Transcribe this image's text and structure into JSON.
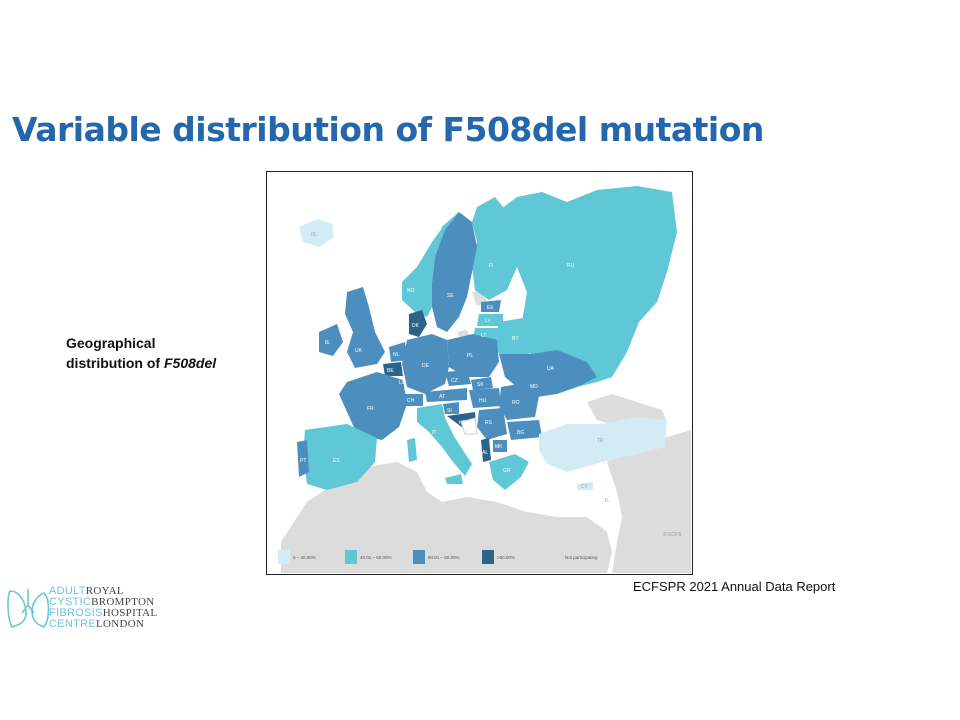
{
  "title": "Variable distribution of F508del mutation",
  "caption": {
    "line1": "Geographical",
    "line2_prefix": "distribution of ",
    "line2_emph": "F508del"
  },
  "source": "ECFSPR 2021 Annual Data Report",
  "legend": [
    {
      "label": "0 – 40.00%",
      "color": "#d3ebf4"
    },
    {
      "label": "40.01 – 60.00%",
      "color": "#5fc7d6"
    },
    {
      "label": "60.01 – 80.00%",
      "color": "#4c8fbe"
    },
    {
      "label": ">80.00%",
      "color": "#2b6488"
    },
    {
      "label": "Not participating",
      "color": "#dcdcdc"
    }
  ],
  "map_credit": "© ECFS",
  "country_labels": [
    "RU",
    "FI",
    "SE",
    "NO",
    "DK",
    "EE",
    "LV",
    "LT",
    "BY",
    "UA",
    "PL",
    "DE",
    "NL",
    "BE",
    "LU",
    "FR",
    "CH",
    "AT",
    "CZ",
    "SK",
    "HU",
    "SI",
    "HR",
    "RS",
    "RO",
    "BG",
    "MD",
    "IT",
    "ES",
    "PT",
    "GR",
    "TR",
    "IE",
    "UK",
    "IS",
    "MK",
    "AL",
    "ME",
    "CY",
    "IL"
  ],
  "logo": {
    "left_lines": [
      "ADULT",
      "CYSTIC",
      "FIBROSIS",
      "CENTRE"
    ],
    "right_lines": [
      "ROYAL",
      "BROMPTON",
      "HOSPITAL",
      "LONDON"
    ]
  }
}
